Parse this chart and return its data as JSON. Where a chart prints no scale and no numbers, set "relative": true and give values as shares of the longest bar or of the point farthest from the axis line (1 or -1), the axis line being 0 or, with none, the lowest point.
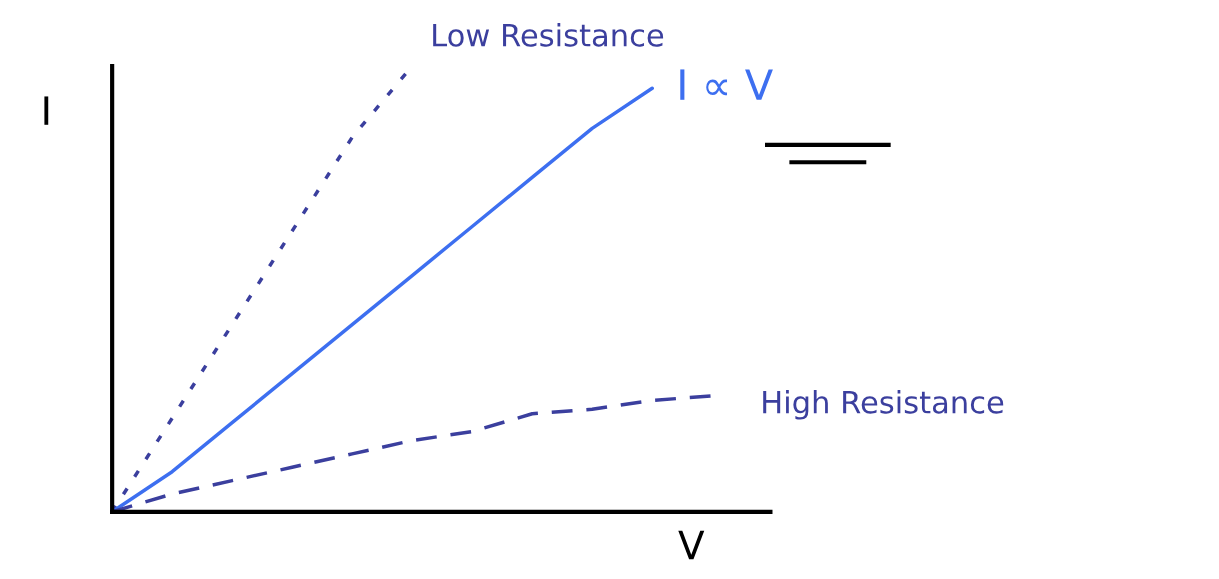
{
  "chart_data": {
    "type": "line",
    "relative": true,
    "xlabel": "V",
    "ylabel": "I",
    "categories": [
      null,
      null,
      null,
      null,
      null,
      null,
      null,
      null,
      null,
      null,
      null
    ],
    "series": [
      {
        "name": "Low Resistance",
        "color": "#3b3f9e",
        "line_style": "dotted",
        "values": [
          0,
          0.21,
          0.42,
          0.63,
          0.84,
          1.0,
          null,
          null,
          null,
          null,
          null
        ]
      },
      {
        "name": "I ∝ V",
        "color": "#3d6ff0",
        "line_style": "solid",
        "values": [
          0,
          0.09,
          0.2,
          0.31,
          0.42,
          0.53,
          0.64,
          0.75,
          0.86,
          0.95,
          null
        ]
      },
      {
        "name": "High Resistance",
        "color": "#3b3f9e",
        "line_style": "dashed",
        "values": [
          0,
          0.04,
          0.07,
          0.1,
          0.13,
          0.16,
          0.18,
          0.22,
          0.23,
          0.25,
          0.26
        ]
      }
    ],
    "grid": false,
    "legend": false,
    "marker": "none"
  }
}
